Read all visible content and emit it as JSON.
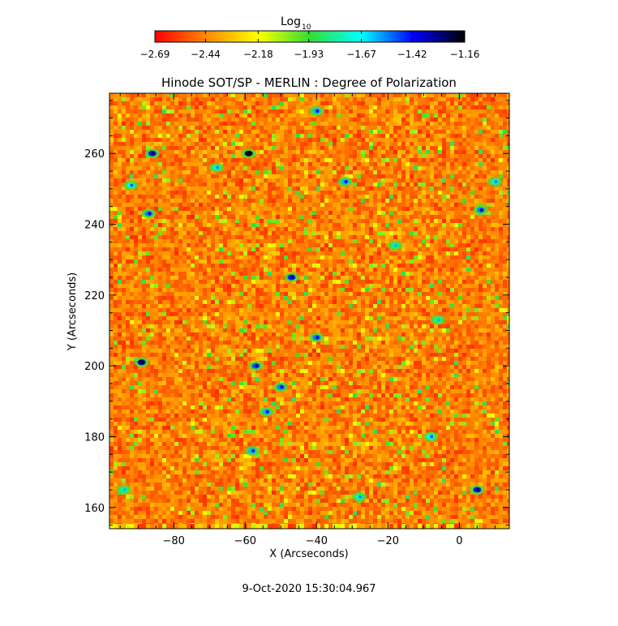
{
  "chart_data": {
    "type": "heatmap",
    "title": "Hinode SOT/SP - MERLIN : Degree of Polarization",
    "xlabel": "X (Arcseconds)",
    "ylabel": "Y (Arcseconds)",
    "xlim": [
      -98,
      14
    ],
    "ylim": [
      154,
      277
    ],
    "x_ticks": [
      -80,
      -60,
      -40,
      -20,
      0
    ],
    "y_ticks": [
      160,
      180,
      200,
      220,
      240,
      260
    ],
    "x_tick_labels": [
      "−80",
      "−60",
      "−40",
      "−20",
      "0"
    ],
    "y_tick_labels": [
      "160",
      "180",
      "200",
      "220",
      "240",
      "260"
    ],
    "colorbar": {
      "label_main": "Log",
      "label_sub": "10",
      "range": [
        -2.69,
        -1.16
      ],
      "ticks": [
        -2.69,
        -2.44,
        -2.18,
        -1.93,
        -1.67,
        -1.42,
        -1.16
      ],
      "tick_labels": [
        "−2.69",
        "−2.44",
        "−2.18",
        "−1.93",
        "−1.67",
        "−1.42",
        "−1.16"
      ],
      "colormap": [
        "#ff0000",
        "#ff8800",
        "#ffff00",
        "#33dd33",
        "#00ffff",
        "#0000ff",
        "#000000"
      ]
    },
    "field_description_level": -2.45,
    "strong_patches": [
      {
        "x": -86,
        "y": 260,
        "v": -1.45
      },
      {
        "x": -89,
        "y": 201,
        "v": -1.35
      },
      {
        "x": -59,
        "y": 260,
        "v": -1.25
      },
      {
        "x": -87,
        "y": 243,
        "v": -1.55
      },
      {
        "x": -92,
        "y": 251,
        "v": -1.7
      },
      {
        "x": -47,
        "y": 225,
        "v": -1.45
      },
      {
        "x": -40,
        "y": 208,
        "v": -1.55
      },
      {
        "x": -50,
        "y": 194,
        "v": -1.55
      },
      {
        "x": -57,
        "y": 200,
        "v": -1.5
      },
      {
        "x": -58,
        "y": 176,
        "v": -1.6
      },
      {
        "x": -54,
        "y": 187,
        "v": -1.6
      },
      {
        "x": -40,
        "y": 272,
        "v": -1.6
      },
      {
        "x": -32,
        "y": 252,
        "v": -1.6
      },
      {
        "x": 6,
        "y": 244,
        "v": -1.55
      },
      {
        "x": 5,
        "y": 165,
        "v": -1.45
      },
      {
        "x": -8,
        "y": 180,
        "v": -1.7
      },
      {
        "x": -28,
        "y": 163,
        "v": -1.75
      },
      {
        "x": -94,
        "y": 165,
        "v": -1.8
      },
      {
        "x": -18,
        "y": 234,
        "v": -1.8
      },
      {
        "x": -6,
        "y": 213,
        "v": -1.8
      },
      {
        "x": -68,
        "y": 256,
        "v": -1.75
      },
      {
        "x": 10,
        "y": 252,
        "v": -1.75
      }
    ]
  },
  "footer": {
    "timestamp": "9-Oct-2020 15:30:04.967"
  }
}
